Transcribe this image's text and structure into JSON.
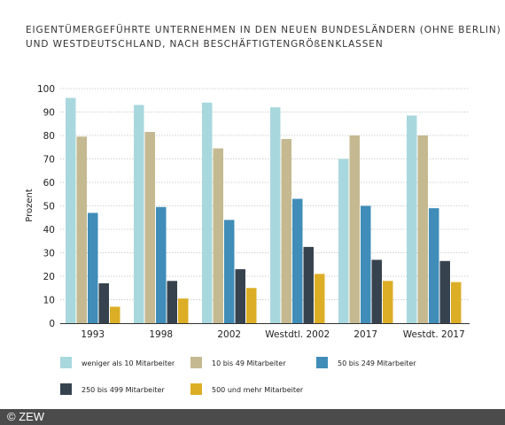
{
  "title_lines": [
    "EIGENTÜMERGEFÜHRTE UNTERNEHMEN IN DEN NEUEN BUNDESLÄNDERN (OHNE BERLIN)",
    "UND WESTDEUTSCHLAND, NACH BESCHÄFTIGTENGRÖßENKLASSEN"
  ],
  "footer": "© ZEW",
  "chart_data": {
    "type": "bar",
    "title": "",
    "xlabel": "",
    "ylabel": "Prozent",
    "ylim": [
      0,
      100
    ],
    "yticks": [
      0,
      10,
      20,
      30,
      40,
      50,
      60,
      70,
      80,
      90,
      100
    ],
    "grid": true,
    "legend_position": "bottom",
    "categories": [
      "1993",
      "1998",
      "2002",
      "Westdtl. 2002",
      "2017",
      "Westdt. 2017"
    ],
    "series": [
      {
        "name": "weniger als 10 Mitarbeiter",
        "color": "#a8d8de",
        "values": [
          96,
          93,
          94,
          92,
          70,
          88.5
        ]
      },
      {
        "name": "10 bis 49 Mitarbeiter",
        "color": "#c4b990",
        "values": [
          79.5,
          81.5,
          74.5,
          78.5,
          80,
          80
        ]
      },
      {
        "name": "50 bis 249 Mitarbeiter",
        "color": "#3f8db8",
        "values": [
          47,
          49.5,
          44,
          53,
          50,
          49
        ]
      },
      {
        "name": "250 bis 499 Mitarbeiter",
        "color": "#36434f",
        "values": [
          17,
          18,
          23,
          32.5,
          27,
          26.5
        ]
      },
      {
        "name": "500 und mehr Mitarbeiter",
        "color": "#dcae25",
        "values": [
          7,
          10.5,
          15,
          21,
          18,
          17.5
        ]
      }
    ]
  }
}
